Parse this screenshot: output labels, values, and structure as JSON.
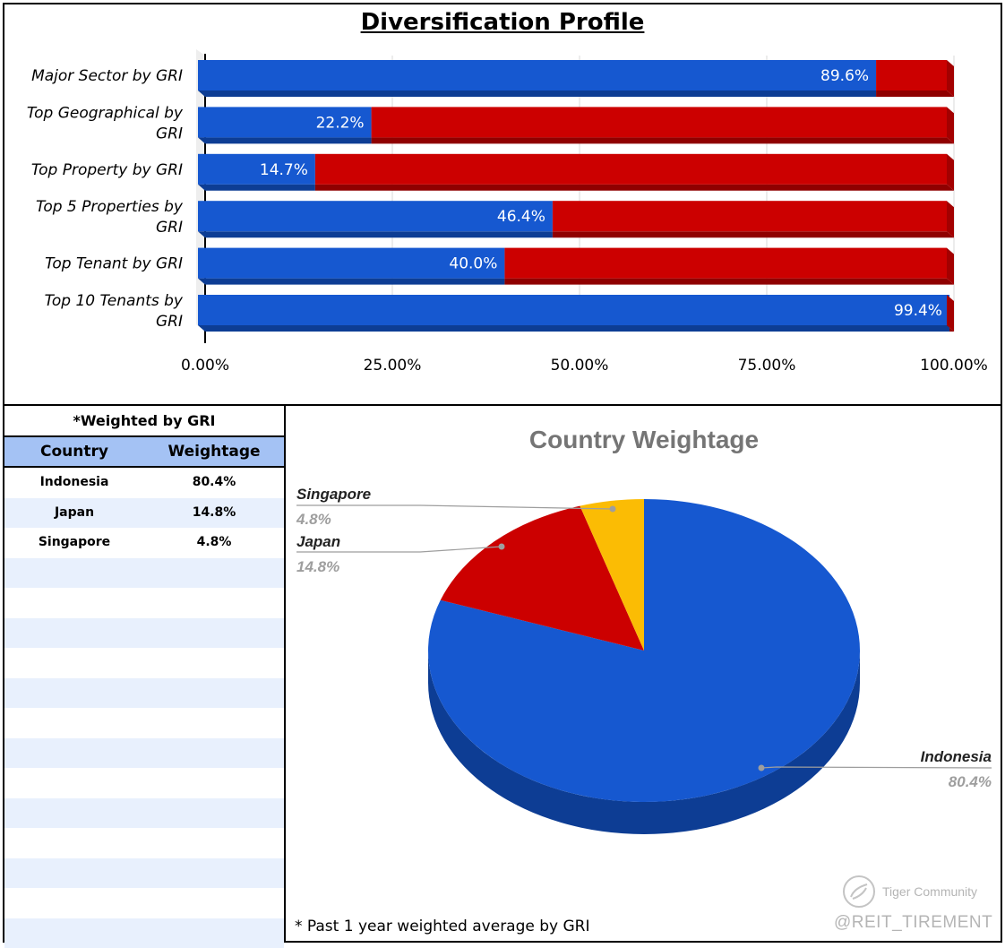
{
  "title": "Diversification Profile",
  "colors": {
    "blue": "#1658d0",
    "blue_dark": "#0d3d94",
    "red": "#cc0000",
    "red_dark": "#8f0000",
    "yellow": "#fbbc04",
    "grid": "#d9d9d9"
  },
  "chart_data": [
    {
      "type": "bar",
      "orientation": "horizontal",
      "stacked": "percent",
      "title": "Diversification Profile",
      "categories": [
        "Major Sector by GRI",
        "Top Geographical by GRI",
        "Top Property by GRI",
        "Top 5 Properties by GRI",
        "Top Tenant by GRI",
        "Top 10 Tenants by GRI"
      ],
      "category_lines": [
        [
          "Major Sector by GRI"
        ],
        [
          "Top Geographical by",
          "GRI"
        ],
        [
          "Top Property by GRI"
        ],
        [
          "Top 5 Properties by",
          "GRI"
        ],
        [
          "Top Tenant by GRI"
        ],
        [
          "Top 10 Tenants by",
          "GRI"
        ]
      ],
      "values": [
        89.6,
        22.2,
        14.7,
        46.4,
        40.0,
        99.4
      ],
      "data_labels": [
        "89.6%",
        "22.2%",
        "14.7%",
        "46.4%",
        "40.0%",
        "99.4%"
      ],
      "xlim": [
        0,
        100
      ],
      "xticks": [
        "0.00%",
        "25.00%",
        "50.00%",
        "75.00%",
        "100.00%"
      ],
      "grid": true
    },
    {
      "type": "pie",
      "title": "Country Weightage",
      "labels": [
        "Indonesia",
        "Japan",
        "Singapore"
      ],
      "values": [
        80.4,
        14.8,
        4.8
      ],
      "data_labels": [
        "80.4%",
        "14.8%",
        "4.8%"
      ]
    }
  ],
  "table": {
    "title": "*Weighted by GRI",
    "headers": [
      "Country",
      "Weightage"
    ],
    "rows": [
      [
        "Indonesia",
        "80.4%"
      ],
      [
        "Japan",
        "14.8%"
      ],
      [
        "Singapore",
        "4.8%"
      ]
    ],
    "empty_rows": 13
  },
  "footnote": "* Past 1 year weighted average by GRI",
  "watermark": {
    "brand": "Tiger Community",
    "handle": "@REIT_TIREMENT"
  }
}
